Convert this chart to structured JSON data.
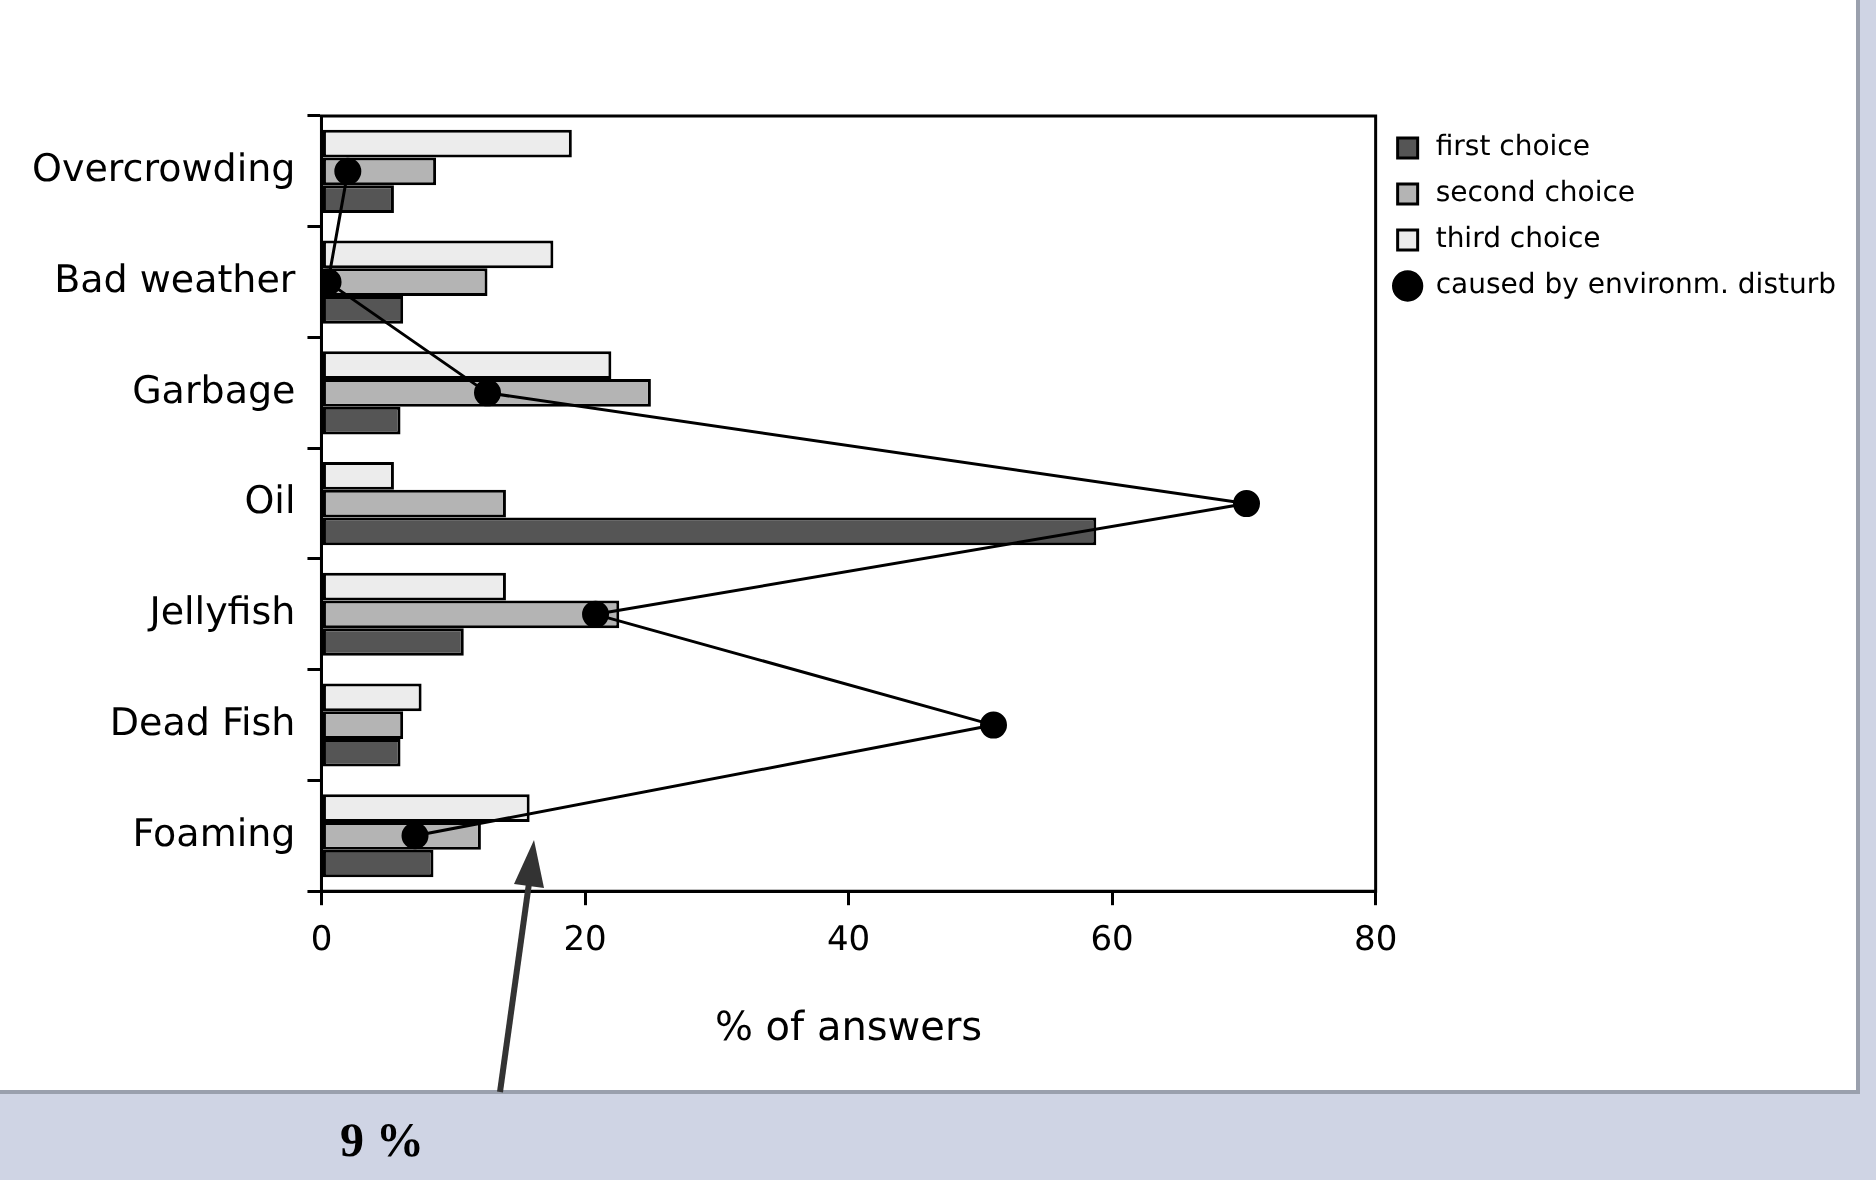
{
  "chart_data": {
    "type": "bar",
    "orientation": "horizontal",
    "categories": [
      "Overcrowding",
      "Bad weather",
      "Garbage",
      "Oil",
      "Jellyfish",
      "Dead Fish",
      "Foaming"
    ],
    "series": [
      {
        "name": "first choice",
        "color": "#555555",
        "values": [
          5.5,
          6.2,
          6.0,
          58.8,
          10.8,
          6.0,
          8.5
        ]
      },
      {
        "name": "second choice",
        "color": "#b4b4b4",
        "values": [
          8.7,
          12.6,
          25.0,
          14.0,
          22.6,
          6.2,
          12.1
        ]
      },
      {
        "name": "third choice",
        "color": "#ececec",
        "values": [
          19.0,
          17.6,
          22.0,
          5.5,
          14.0,
          7.6,
          15.8
        ]
      },
      {
        "name": "caused by environm. disturb",
        "type": "line",
        "marker": "circle",
        "color": "#000000",
        "values": [
          2.0,
          0.5,
          12.6,
          70.2,
          20.8,
          51.0,
          7.1
        ]
      }
    ],
    "xlabel": "% of answers",
    "xlim": [
      0,
      80
    ],
    "xticks": [
      0,
      20,
      40,
      60,
      80
    ],
    "grid": false,
    "legend": "right",
    "annotations": [
      "9 %"
    ]
  }
}
